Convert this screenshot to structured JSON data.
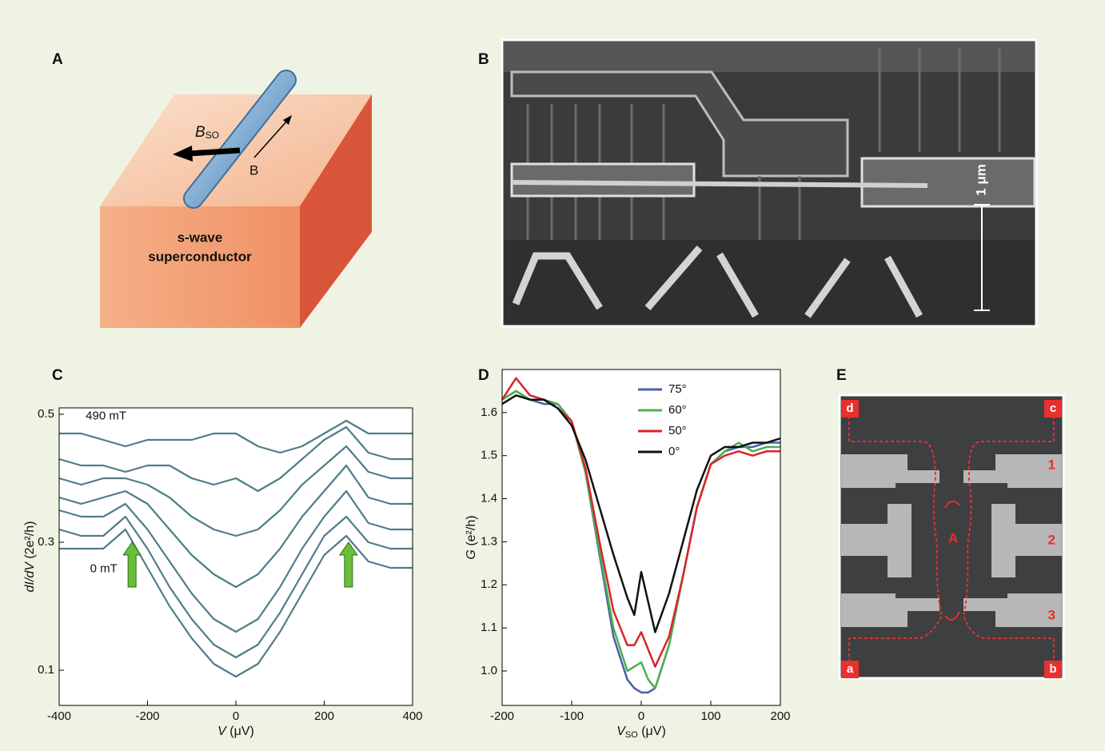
{
  "panel_a": {
    "label": "A",
    "field_parts": [
      "B",
      "SO"
    ],
    "field": "B",
    "substrate": [
      "s-wave",
      "superconductor"
    ]
  },
  "panel_b": {
    "label": "B",
    "scale": "1 μm"
  },
  "chart_data": [
    {
      "type": "line",
      "label": "C",
      "xlabel_parts": [
        "V",
        " (μV)"
      ],
      "ylabel_parts": [
        "dI/dV",
        " (2e²/h)"
      ],
      "xlim": [
        -400,
        400
      ],
      "ylim": [
        0.045,
        0.51
      ],
      "xticks": [
        -400,
        -200,
        0,
        200,
        400
      ],
      "yticks": [
        0.1,
        0.3,
        0.5
      ],
      "color": "#4f7d88",
      "annotations": [
        {
          "text": "490 mT",
          "x": -340,
          "y": 0.497
        },
        {
          "text": "0 mT",
          "x": -330,
          "y": 0.258
        }
      ],
      "arrows": [
        {
          "x": -235,
          "y": 0.3
        },
        {
          "x": 255,
          "y": 0.3
        }
      ],
      "arrow_color": "#6abf3a",
      "x": [
        -400,
        -350,
        -300,
        -250,
        -200,
        -150,
        -100,
        -50,
        0,
        50,
        100,
        150,
        200,
        250,
        300,
        350,
        400
      ],
      "series": [
        {
          "values": [
            0.29,
            0.29,
            0.29,
            0.32,
            0.26,
            0.2,
            0.15,
            0.11,
            0.09,
            0.11,
            0.16,
            0.22,
            0.28,
            0.31,
            0.27,
            0.26,
            0.26
          ]
        },
        {
          "values": [
            0.32,
            0.31,
            0.31,
            0.34,
            0.29,
            0.23,
            0.18,
            0.14,
            0.12,
            0.14,
            0.19,
            0.25,
            0.31,
            0.34,
            0.3,
            0.29,
            0.29
          ]
        },
        {
          "values": [
            0.35,
            0.34,
            0.34,
            0.36,
            0.32,
            0.27,
            0.22,
            0.18,
            0.16,
            0.18,
            0.23,
            0.29,
            0.34,
            0.38,
            0.33,
            0.32,
            0.32
          ]
        },
        {
          "values": [
            0.37,
            0.36,
            0.37,
            0.38,
            0.36,
            0.32,
            0.28,
            0.25,
            0.23,
            0.25,
            0.29,
            0.34,
            0.38,
            0.42,
            0.37,
            0.36,
            0.36
          ]
        },
        {
          "values": [
            0.4,
            0.39,
            0.4,
            0.4,
            0.39,
            0.37,
            0.34,
            0.32,
            0.31,
            0.32,
            0.35,
            0.39,
            0.42,
            0.45,
            0.41,
            0.4,
            0.4
          ]
        },
        {
          "values": [
            0.43,
            0.42,
            0.42,
            0.41,
            0.42,
            0.42,
            0.4,
            0.39,
            0.4,
            0.38,
            0.4,
            0.43,
            0.46,
            0.48,
            0.44,
            0.43,
            0.43
          ]
        },
        {
          "values": [
            0.47,
            0.47,
            0.46,
            0.45,
            0.46,
            0.46,
            0.46,
            0.47,
            0.47,
            0.45,
            0.44,
            0.45,
            0.47,
            0.49,
            0.47,
            0.47,
            0.47
          ]
        }
      ]
    },
    {
      "type": "line",
      "label": "D",
      "xlabel_parts": [
        "V",
        "SO",
        " (μV)"
      ],
      "ylabel_parts": [
        "G",
        " (e²/h)"
      ],
      "xlim": [
        -200,
        200
      ],
      "ylim": [
        0.92,
        1.7
      ],
      "xticks": [
        -200,
        -100,
        0,
        100,
        200
      ],
      "yticks": [
        {
          "value": 1,
          "label": "1.0"
        },
        1.1,
        1.2,
        1.3,
        1.4,
        1.5,
        1.6
      ],
      "x": [
        -200,
        -180,
        -160,
        -140,
        -120,
        -100,
        -80,
        -60,
        -40,
        -20,
        -10,
        0,
        10,
        20,
        40,
        60,
        80,
        100,
        120,
        140,
        160,
        180,
        200
      ],
      "series": [
        {
          "name": "75°",
          "color": "#4a5fa8",
          "values": [
            1.63,
            1.65,
            1.63,
            1.62,
            1.62,
            1.58,
            1.46,
            1.27,
            1.08,
            0.98,
            0.96,
            0.95,
            0.95,
            0.96,
            1.06,
            1.22,
            1.38,
            1.48,
            1.51,
            1.52,
            1.52,
            1.53,
            1.53
          ]
        },
        {
          "name": "60°",
          "color": "#4caf50",
          "values": [
            1.63,
            1.65,
            1.63,
            1.63,
            1.62,
            1.58,
            1.46,
            1.28,
            1.1,
            1.0,
            1.01,
            1.02,
            0.98,
            0.96,
            1.06,
            1.22,
            1.38,
            1.48,
            1.51,
            1.53,
            1.51,
            1.52,
            1.52
          ]
        },
        {
          "name": "50°",
          "color": "#d7252a",
          "values": [
            1.63,
            1.68,
            1.64,
            1.63,
            1.61,
            1.58,
            1.47,
            1.3,
            1.14,
            1.06,
            1.06,
            1.09,
            1.05,
            1.01,
            1.08,
            1.22,
            1.38,
            1.48,
            1.5,
            1.51,
            1.5,
            1.51,
            1.51
          ]
        },
        {
          "name": "0°",
          "color": "#111111",
          "values": [
            1.62,
            1.64,
            1.63,
            1.63,
            1.61,
            1.57,
            1.49,
            1.38,
            1.27,
            1.17,
            1.13,
            1.23,
            1.16,
            1.09,
            1.18,
            1.3,
            1.42,
            1.5,
            1.52,
            1.52,
            1.53,
            1.53,
            1.54
          ]
        }
      ]
    }
  ],
  "panel_e": {
    "label": "E",
    "corners": [
      "d",
      "c",
      "a",
      "b"
    ],
    "electrodes": [
      "1",
      "2",
      "3"
    ],
    "loop": "A"
  }
}
